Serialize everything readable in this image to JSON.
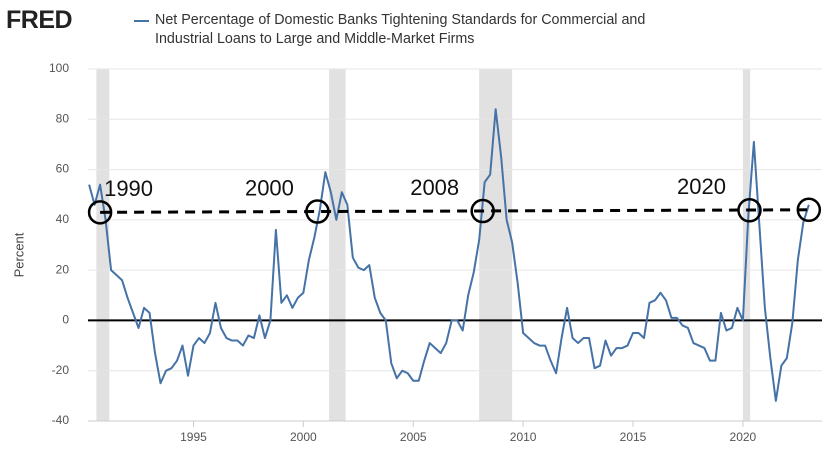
{
  "chart_data": {
    "type": "line",
    "logo": "FRED",
    "y_label": "Percent",
    "xlim": [
      1990.2,
      2023.6
    ],
    "ylim": [
      -40,
      100
    ],
    "xticks": [
      1995,
      2000,
      2005,
      2010,
      2015,
      2020
    ],
    "yticks": [
      -40,
      -20,
      0,
      20,
      40,
      60,
      80,
      100
    ],
    "grid": true,
    "hlines": [
      0
    ],
    "recessions": [
      [
        1990.58,
        1991.17
      ],
      [
        2001.17,
        2001.92
      ],
      [
        2008.0,
        2009.5
      ],
      [
        2020.0,
        2020.33
      ]
    ],
    "x": [
      1990.25,
      1990.5,
      1990.75,
      1991.0,
      1991.25,
      1991.5,
      1991.75,
      1992.0,
      1992.25,
      1992.5,
      1992.75,
      1993.0,
      1993.25,
      1993.5,
      1993.75,
      1994.0,
      1994.25,
      1994.5,
      1994.75,
      1995.0,
      1995.25,
      1995.5,
      1995.75,
      1996.0,
      1996.25,
      1996.5,
      1996.75,
      1997.0,
      1997.25,
      1997.5,
      1997.75,
      1998.0,
      1998.25,
      1998.5,
      1998.75,
      1999.0,
      1999.25,
      1999.5,
      1999.75,
      2000.0,
      2000.25,
      2000.5,
      2000.75,
      2001.0,
      2001.25,
      2001.5,
      2001.75,
      2002.0,
      2002.25,
      2002.5,
      2002.75,
      2003.0,
      2003.25,
      2003.5,
      2003.75,
      2004.0,
      2004.25,
      2004.5,
      2004.75,
      2005.0,
      2005.25,
      2005.5,
      2005.75,
      2006.0,
      2006.25,
      2006.5,
      2006.75,
      2007.0,
      2007.25,
      2007.5,
      2007.75,
      2008.0,
      2008.25,
      2008.5,
      2008.75,
      2009.0,
      2009.25,
      2009.5,
      2009.75,
      2010.0,
      2010.25,
      2010.5,
      2010.75,
      2011.0,
      2011.25,
      2011.5,
      2011.75,
      2012.0,
      2012.25,
      2012.5,
      2012.75,
      2013.0,
      2013.25,
      2013.5,
      2013.75,
      2014.0,
      2014.25,
      2014.5,
      2014.75,
      2015.0,
      2015.25,
      2015.5,
      2015.75,
      2016.0,
      2016.25,
      2016.5,
      2016.75,
      2017.0,
      2017.25,
      2017.5,
      2017.75,
      2018.0,
      2018.25,
      2018.5,
      2018.75,
      2019.0,
      2019.25,
      2019.5,
      2019.75,
      2020.0,
      2020.25,
      2020.5,
      2020.75,
      2021.0,
      2021.25,
      2021.5,
      2021.75,
      2022.0,
      2022.25,
      2022.5,
      2022.75,
      2023.0
    ],
    "series": [
      {
        "name": "Net Percentage of Domestic Banks Tightening Standards for Commercial and Industrial Loans to Large and Middle-Market Firms",
        "color": "#4572a7",
        "values": [
          54,
          46,
          54,
          40,
          20,
          18,
          16,
          9,
          3,
          -3,
          5,
          3,
          -13,
          -25,
          -20,
          -19,
          -16,
          -10,
          -22,
          -10,
          -7,
          -9,
          -5,
          7,
          -3,
          -7,
          -8,
          -8,
          -10,
          -6,
          -7,
          2,
          -7,
          0,
          36,
          7,
          10,
          5,
          9,
          11,
          24,
          33,
          44,
          59,
          51,
          40,
          51,
          46,
          25,
          21,
          20,
          22,
          9,
          3,
          0,
          -17,
          -23,
          -20,
          -21,
          -24,
          -24,
          -16,
          -9,
          -11,
          -13,
          -9,
          0,
          0,
          -4,
          10,
          19,
          32,
          55,
          58,
          84,
          65,
          40,
          31,
          15,
          -5,
          -7,
          -9,
          -10,
          -10,
          -16,
          -21,
          -7,
          5,
          -7,
          -9,
          -7,
          -7,
          -19,
          -18,
          -8,
          -14,
          -11,
          -11,
          -10,
          -5,
          -5,
          -7,
          7,
          8,
          11,
          8,
          1,
          1,
          -2,
          -3,
          -9,
          -10,
          -11,
          -16,
          -16,
          3,
          -4,
          -3,
          5,
          0,
          42,
          71,
          38,
          5,
          -15,
          -32,
          -18,
          -15,
          -1,
          24,
          39,
          46
        ]
      }
    ],
    "reference_line": {
      "x": [
        1990.75,
        2023.0
      ],
      "y": [
        43,
        44
      ]
    },
    "markers": [
      {
        "x": 1990.75,
        "y": 43,
        "label": "1990"
      },
      {
        "x": 2000.64,
        "y": 43.3,
        "label": "2000"
      },
      {
        "x": 2008.16,
        "y": 43.5,
        "label": "2008"
      },
      {
        "x": 2020.3,
        "y": 43.8,
        "label": "2020"
      },
      {
        "x": 2023.0,
        "y": 44
      }
    ]
  }
}
